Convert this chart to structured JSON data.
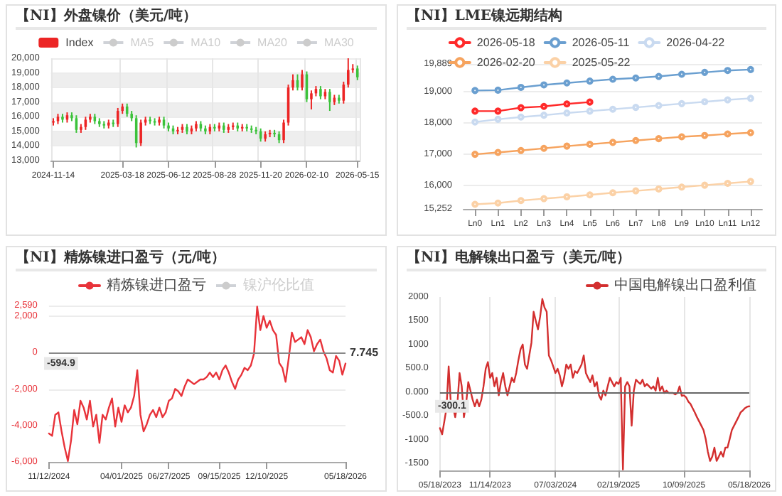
{
  "chart_data": [
    {
      "type": "candlestick",
      "title": "【NI】外盘镍价（美元/吨）",
      "legend": "top",
      "grid": true,
      "categories": [
        "2024-11-14",
        null,
        null,
        null,
        null,
        null,
        null,
        null,
        null,
        null,
        null,
        null,
        null,
        null,
        null,
        "2025-03-18",
        null,
        null,
        null,
        null,
        null,
        null,
        null,
        null,
        null,
        "2025-06-12",
        null,
        null,
        null,
        null,
        null,
        null,
        null,
        null,
        null,
        "2025-08-28",
        null,
        null,
        null,
        null,
        null,
        null,
        null,
        null,
        null,
        "2025-11-20",
        null,
        null,
        null,
        null,
        null,
        null,
        null,
        null,
        null,
        "2026-02-10",
        null,
        null,
        null,
        null,
        null,
        null,
        null,
        null,
        null,
        null,
        "2026-05-15"
      ],
      "ylim": [
        13000,
        20000
      ],
      "yticks": [
        {
          "value": 13000,
          "label": "13,000"
        },
        {
          "value": 14000,
          "label": "14,000"
        },
        {
          "value": 15000,
          "label": "15,000"
        },
        {
          "value": 16000,
          "label": "16,000"
        },
        {
          "value": 17000,
          "label": "17,000"
        },
        {
          "value": 18000,
          "label": "18,000"
        },
        {
          "value": 19000,
          "label": "19,000"
        },
        {
          "value": 20000,
          "label": "20,000"
        }
      ],
      "series": [
        {
          "name": "Index",
          "type": "candlestick",
          "color": "#ec2525",
          "colors": [
            "#ec2525",
            "#ec2525",
            "#3cc23b",
            "#ec2525",
            "#3cc23b",
            "#3cc23b",
            "#ec2525",
            "#ec2525",
            "#ec2525",
            "#3cc23b",
            "#3cc23b",
            "#3cc23b",
            "#ec2525",
            "#3cc23b",
            "#ec2525",
            "#ec2525",
            "#3cc23b",
            "#3cc23b",
            "#3cc23b",
            "#ec2525",
            "#ec2525",
            "#3cc23b",
            "#3cc23b",
            "#ec2525",
            "#3cc23b",
            "#3cc23b",
            "#3cc23b",
            "#ec2525",
            "#ec2525",
            "#3cc23b",
            "#ec2525",
            "#ec2525",
            "#3cc23b",
            "#3cc23b",
            "#ec2525",
            "#3cc23b",
            "#ec2525",
            "#3cc23b",
            "#ec2525",
            "#ec2525",
            "#3cc23b",
            "#ec2525",
            "#3cc23b",
            "#3cc23b",
            "#3cc23b",
            "#3cc23b",
            "#ec2525",
            "#ec2525",
            "#3cc23b",
            "#3cc23b",
            "#ec2525",
            "#ec2525",
            "#ec2525",
            "#3cc23b",
            "#ec2525",
            "#3cc23b",
            "#ec2525",
            "#ec2525",
            "#3cc23b",
            "#ec2525",
            "#3cc23b",
            "#ec2525",
            "#3cc23b",
            "#ec2525",
            "#ec2525",
            "#ec2525",
            "#3cc23b"
          ],
          "ohlc": [
            [
              15600,
              15900,
              15400,
              15700
            ],
            [
              15700,
              16200,
              15500,
              16000
            ],
            [
              16000,
              16200,
              15600,
              15800
            ],
            [
              15800,
              16300,
              15600,
              16100
            ],
            [
              16100,
              16300,
              15700,
              15900
            ],
            [
              15900,
              16100,
              14900,
              15100
            ],
            [
              15100,
              15500,
              14900,
              15300
            ],
            [
              15300,
              16000,
              15100,
              15800
            ],
            [
              15800,
              16200,
              15600,
              16000
            ],
            [
              16000,
              16200,
              15500,
              15700
            ],
            [
              15700,
              15900,
              15300,
              15500
            ],
            [
              15500,
              15700,
              15200,
              15400
            ],
            [
              15400,
              15800,
              15200,
              15600
            ],
            [
              15600,
              15800,
              15300,
              15500
            ],
            [
              15500,
              16600,
              15300,
              16400
            ],
            [
              16400,
              16900,
              16200,
              16700
            ],
            [
              16700,
              16900,
              16000,
              16200
            ],
            [
              16200,
              16400,
              15700,
              15900
            ],
            [
              15900,
              16100,
              13900,
              14200
            ],
            [
              14200,
              15800,
              14000,
              15600
            ],
            [
              15600,
              16000,
              15400,
              15800
            ],
            [
              15800,
              16000,
              15500,
              15700
            ],
            [
              15700,
              15900,
              15400,
              15600
            ],
            [
              15600,
              16000,
              15400,
              15800
            ],
            [
              15800,
              16000,
              15200,
              15400
            ],
            [
              15400,
              15600,
              15000,
              15200
            ],
            [
              15200,
              15400,
              14800,
              15000
            ],
            [
              15000,
              15300,
              14800,
              15100
            ],
            [
              15100,
              15500,
              14900,
              15300
            ],
            [
              15300,
              15500,
              14800,
              15000
            ],
            [
              15000,
              15400,
              14800,
              15200
            ],
            [
              15200,
              15700,
              15000,
              15500
            ],
            [
              15500,
              15700,
              15000,
              15200
            ],
            [
              15200,
              15400,
              14800,
              15000
            ],
            [
              15000,
              15500,
              14800,
              15300
            ],
            [
              15300,
              15500,
              15000,
              15200
            ],
            [
              15200,
              15600,
              15000,
              15400
            ],
            [
              15400,
              15600,
              14900,
              15100
            ],
            [
              15100,
              15500,
              14900,
              15300
            ],
            [
              15300,
              15600,
              15100,
              15400
            ],
            [
              15400,
              15600,
              15000,
              15200
            ],
            [
              15200,
              15500,
              15000,
              15300
            ],
            [
              15300,
              15500,
              15000,
              15200
            ],
            [
              15200,
              15400,
              14900,
              15100
            ],
            [
              15100,
              15300,
              14800,
              15000
            ],
            [
              15000,
              15200,
              14300,
              14500
            ],
            [
              14500,
              15000,
              14300,
              14800
            ],
            [
              14800,
              15100,
              14600,
              14900
            ],
            [
              14900,
              15100,
              14600,
              14800
            ],
            [
              14800,
              15000,
              14200,
              14400
            ],
            [
              14400,
              15800,
              14200,
              15600
            ],
            [
              15600,
              18200,
              15400,
              18000
            ],
            [
              18000,
              18900,
              17800,
              18500
            ],
            [
              18500,
              18900,
              17800,
              18000
            ],
            [
              18000,
              19200,
              17800,
              18900
            ],
            [
              18900,
              19100,
              17000,
              17200
            ],
            [
              17200,
              17800,
              16500,
              17600
            ],
            [
              17600,
              18100,
              17400,
              17900
            ],
            [
              17900,
              18100,
              17200,
              17400
            ],
            [
              17400,
              17900,
              17200,
              17700
            ],
            [
              17700,
              17900,
              16400,
              17000
            ],
            [
              17000,
              17500,
              16800,
              17300
            ],
            [
              17300,
              17500,
              16900,
              17100
            ],
            [
              17100,
              18400,
              16900,
              18200
            ],
            [
              18200,
              20000,
              18000,
              19200
            ],
            [
              19200,
              19600,
              19000,
              19300
            ],
            [
              19300,
              19500,
              18500,
              18700
            ]
          ]
        },
        {
          "name": "MA5",
          "type": "line",
          "color": "#cccccc",
          "values": [
            null,
            null,
            null,
            null,
            null,
            null,
            null,
            null,
            null,
            null,
            null,
            null,
            null,
            null,
            null,
            null,
            null,
            null,
            null,
            null,
            null,
            null,
            null,
            null,
            null,
            null,
            null,
            null,
            null,
            null,
            null,
            null,
            null,
            null,
            null,
            null,
            null,
            null,
            null,
            null,
            null,
            null,
            null,
            null,
            null,
            null,
            null,
            null,
            null,
            null,
            null,
            null,
            null,
            null,
            null,
            null,
            null,
            null,
            null,
            null,
            null,
            null,
            null,
            null,
            null,
            null,
            null
          ]
        },
        {
          "name": "MA10",
          "type": "line",
          "color": "#cccccc",
          "values": [
            null,
            null,
            null,
            null,
            null,
            null,
            null,
            null,
            null,
            null,
            null,
            null,
            null,
            null,
            null,
            null,
            null,
            null,
            null,
            null,
            null,
            null,
            null,
            null,
            null,
            null,
            null,
            null,
            null,
            null,
            null,
            null,
            null,
            null,
            null,
            null,
            null,
            null,
            null,
            null,
            null,
            null,
            null,
            null,
            null,
            null,
            null,
            null,
            null,
            null,
            null,
            null,
            null,
            null,
            null,
            null,
            null,
            null,
            null,
            null,
            null,
            null,
            null,
            null,
            null,
            null,
            null
          ]
        },
        {
          "name": "MA20",
          "type": "line",
          "color": "#cccccc",
          "values": [
            null,
            null,
            null,
            null,
            null,
            null,
            null,
            null,
            null,
            null,
            null,
            null,
            null,
            null,
            null,
            null,
            null,
            null,
            null,
            null,
            null,
            null,
            null,
            null,
            null,
            null,
            null,
            null,
            null,
            null,
            null,
            null,
            null,
            null,
            null,
            null,
            null,
            null,
            null,
            null,
            null,
            null,
            null,
            null,
            null,
            null,
            null,
            null,
            null,
            null,
            null,
            null,
            null,
            null,
            null,
            null,
            null,
            null,
            null,
            null,
            null,
            null,
            null,
            null,
            null,
            null,
            null
          ]
        },
        {
          "name": "MA30",
          "type": "line",
          "color": "#cccccc",
          "values": [
            null,
            null,
            null,
            null,
            null,
            null,
            null,
            null,
            null,
            null,
            null,
            null,
            null,
            null,
            null,
            null,
            null,
            null,
            null,
            null,
            null,
            null,
            null,
            null,
            null,
            null,
            null,
            null,
            null,
            null,
            null,
            null,
            null,
            null,
            null,
            null,
            null,
            null,
            null,
            null,
            null,
            null,
            null,
            null,
            null,
            null,
            null,
            null,
            null,
            null,
            null,
            null,
            null,
            null,
            null,
            null,
            null,
            null,
            null,
            null,
            null,
            null,
            null,
            null,
            null,
            null,
            null
          ]
        }
      ]
    },
    {
      "type": "line",
      "title": "【NI】LME镍远期结构",
      "legend": "top",
      "grid": "y",
      "marker": "circle",
      "categories": [
        "Ln0",
        "Ln1",
        "Ln2",
        "Ln3",
        "Ln4",
        "Ln5",
        "Ln6",
        "Ln7",
        "Ln8",
        "Ln9",
        "Ln10",
        "Ln11",
        "Ln12"
      ],
      "ylim": [
        15252,
        19889
      ],
      "yticks": [
        {
          "value": 15252,
          "label": "15,252"
        },
        {
          "value": 16000,
          "label": "16,000"
        },
        {
          "value": 17000,
          "label": "17,000"
        },
        {
          "value": 18000,
          "label": "18,000"
        },
        {
          "value": 19000,
          "label": "19,000"
        },
        {
          "value": 19889,
          "label": "19,889"
        }
      ],
      "series": [
        {
          "name": "2026-05-18",
          "color": "#ff2a2a",
          "values": [
            18380,
            18380,
            18490,
            18530,
            18610,
            18670,
            null,
            null,
            null,
            null,
            null,
            null,
            null
          ]
        },
        {
          "name": "2026-05-11",
          "color": "#6a9fd0",
          "values": [
            19040,
            19050,
            19140,
            19220,
            19280,
            19340,
            19400,
            19440,
            19490,
            19560,
            19620,
            19680,
            19710
          ]
        },
        {
          "name": "2026-04-22",
          "color": "#c9daf0",
          "values": [
            18030,
            18120,
            18190,
            18250,
            18320,
            18380,
            18440,
            18500,
            18560,
            18620,
            18680,
            18740,
            18790
          ]
        },
        {
          "name": "2026-02-20",
          "color": "#f6a35e",
          "values": [
            17000,
            17060,
            17120,
            17190,
            17260,
            17320,
            17380,
            17440,
            17500,
            17560,
            17600,
            17650,
            17690
          ]
        },
        {
          "name": "2025-05-22",
          "color": "#fbd1a6",
          "values": [
            15400,
            15440,
            15520,
            15580,
            15640,
            15700,
            15770,
            15830,
            15890,
            15950,
            16010,
            16070,
            16130
          ]
        }
      ]
    },
    {
      "type": "line",
      "title": "【NI】精炼镍进口盈亏（元/吨）",
      "legend": "top",
      "grid": "y",
      "marker": "none",
      "categories": [
        "11/12/2024",
        null,
        null,
        null,
        null,
        null,
        null,
        null,
        null,
        null,
        null,
        null,
        null,
        null,
        null,
        null,
        null,
        null,
        null,
        null,
        null,
        null,
        null,
        "04/01/2025",
        null,
        null,
        null,
        null,
        null,
        null,
        null,
        null,
        null,
        null,
        null,
        null,
        null,
        null,
        "06/27/2025",
        null,
        null,
        null,
        null,
        null,
        null,
        null,
        null,
        null,
        null,
        null,
        null,
        null,
        null,
        null,
        "09/15/2025",
        null,
        null,
        null,
        null,
        null,
        null,
        null,
        null,
        null,
        null,
        null,
        null,
        null,
        null,
        "12/10/2025",
        null,
        null,
        null,
        null,
        null,
        null,
        null,
        null,
        null,
        null,
        null,
        null,
        null,
        null,
        null,
        null,
        null,
        null,
        null,
        null,
        null,
        null,
        null,
        null,
        "05/18/2026"
      ],
      "ylim": [
        -6000,
        2590
      ],
      "yticks": [
        {
          "value": -6000,
          "label": "-6,000"
        },
        {
          "value": -4000,
          "label": "-4,000"
        },
        {
          "value": -2000,
          "label": "-2,000"
        },
        0,
        {
          "value": 2000,
          "label": "2,000"
        },
        {
          "value": 2590,
          "label": "2,590"
        }
      ],
      "ref_lines": [
        {
          "axis": "y",
          "value": 0,
          "color": "#888888"
        }
      ],
      "annotations": [
        "-594.9",
        "7.745"
      ],
      "series": [
        {
          "name": "精炼镍进口盈亏",
          "color": "#e8333a",
          "values": [
            -4440,
            -4570,
            -3410,
            -3280,
            -4320,
            -5220,
            -5950,
            -4830,
            -3150,
            -3930,
            -2640,
            -3020,
            -3670,
            -2640,
            -4060,
            -3410,
            -4960,
            -3410,
            -3670,
            -3020,
            -2510,
            -4060,
            -3020,
            -3800,
            -2890,
            -3280,
            -3020,
            -2380,
            -960,
            -3410,
            -4320,
            -3930,
            -3410,
            -3150,
            -3540,
            -3020,
            -3540,
            -3280,
            -2640,
            -2510,
            -1990,
            -2120,
            -2380,
            -1860,
            -1470,
            -1600,
            -1730,
            -1600,
            -1470,
            -1470,
            -1340,
            -1090,
            -1340,
            -1090,
            -1470,
            -960,
            -700,
            -1090,
            -1600,
            -1990,
            -1470,
            -1210,
            -830,
            -960,
            -700,
            -50,
            2530,
            1240,
            2020,
            1370,
            1760,
            1240,
            980,
            -570,
            -830,
            -1600,
            -310,
            1110,
            590,
            720,
            850,
            470,
            1240,
            850,
            80,
            470,
            720,
            80,
            -310,
            -960,
            -1090,
            -180,
            -440,
            -1210,
            -594.9
          ]
        },
        {
          "name": "镍沪伦比值",
          "color": "#cccccc",
          "values": [
            null,
            null,
            null,
            null,
            null,
            null,
            null,
            null,
            null,
            null,
            null,
            null,
            null,
            null,
            null,
            null,
            null,
            null,
            null,
            null,
            null,
            null,
            null,
            null,
            null,
            null,
            null,
            null,
            null,
            null,
            null,
            null,
            null,
            null,
            null,
            null,
            null,
            null,
            null,
            null,
            null,
            null,
            null,
            null,
            null,
            null,
            null,
            null,
            null,
            null,
            null,
            null,
            null,
            null,
            null,
            null,
            null,
            null,
            null,
            null,
            null,
            null,
            null,
            null,
            null,
            null,
            null,
            null,
            null,
            null,
            null,
            null,
            null,
            null,
            null,
            null,
            null,
            null,
            null,
            null,
            null,
            null,
            null,
            null,
            null,
            null,
            null,
            null,
            null,
            null,
            null,
            null,
            null,
            null,
            null
          ]
        }
      ]
    },
    {
      "type": "line",
      "title": "【NI】电解镍出口盈亏（美元/吨）",
      "legend": "top right",
      "grid": "x",
      "marker": "none",
      "categories": [
        "05/18/2023",
        null,
        null,
        null,
        null,
        null,
        null,
        null,
        null,
        null,
        null,
        null,
        null,
        null,
        null,
        null,
        null,
        null,
        null,
        null,
        null,
        null,
        null,
        "11/14/2023",
        null,
        null,
        null,
        null,
        null,
        null,
        null,
        null,
        null,
        null,
        null,
        null,
        null,
        null,
        null,
        null,
        null,
        null,
        null,
        null,
        null,
        null,
        null,
        null,
        null,
        null,
        null,
        null,
        null,
        "07/03/2024",
        null,
        null,
        null,
        null,
        null,
        null,
        null,
        null,
        null,
        null,
        null,
        null,
        null,
        null,
        null,
        null,
        null,
        null,
        null,
        null,
        null,
        null,
        null,
        null,
        null,
        null,
        null,
        null,
        "02/19/2025",
        null,
        null,
        null,
        null,
        null,
        null,
        null,
        null,
        null,
        null,
        null,
        null,
        null,
        null,
        null,
        null,
        null,
        null,
        null,
        null,
        null,
        null,
        null,
        null,
        null,
        null,
        null,
        null,
        null,
        "10/09/2025",
        null,
        null,
        null,
        null,
        null,
        null,
        null,
        null,
        null,
        null,
        null,
        null,
        null,
        null,
        null,
        null,
        null,
        null,
        null,
        null,
        null,
        null,
        null,
        null,
        null,
        null,
        null,
        null,
        null,
        "05/18/2026"
      ],
      "ylim": [
        -1650,
        2000
      ],
      "yticks": [
        -1500,
        -1000,
        {
          "value": -500,
          "label": "-500.0"
        },
        {
          "value": 0,
          "label": "0.000"
        },
        {
          "value": 500,
          "label": "500.0"
        },
        1000,
        1500,
        2000
      ],
      "ref_lines": [
        {
          "axis": "y",
          "value": 0,
          "color": "#666666"
        }
      ],
      "annotations": [
        "-300.1"
      ],
      "series": [
        {
          "name": "中国电解镍出口盈利值",
          "color": "#d32f2f",
          "values": [
            -760,
            -890,
            -620,
            -340,
            540,
            -250,
            -300,
            -530,
            -250,
            400,
            120,
            -530,
            -250,
            210,
            30,
            -160,
            -300,
            -160,
            -300,
            -160,
            120,
            490,
            630,
            300,
            400,
            120,
            300,
            -70,
            210,
            400,
            120,
            -70,
            120,
            300,
            210,
            400,
            670,
            900,
            1000,
            580,
            490,
            770,
            1040,
            1690,
            1500,
            1320,
            1590,
            1960,
            1780,
            1690,
            770,
            670,
            540,
            400,
            490,
            350,
            120,
            300,
            580,
            490,
            580,
            300,
            440,
            400,
            490,
            580,
            770,
            400,
            300,
            210,
            350,
            120,
            210,
            -70,
            -160,
            30,
            -70,
            120,
            300,
            210,
            120,
            210,
            170,
            300,
            -1630,
            120,
            210,
            120,
            -710,
            30,
            260,
            210,
            170,
            260,
            120,
            170,
            120,
            70,
            120,
            30,
            300,
            30,
            120,
            -20,
            30,
            -20,
            -20,
            -20,
            -50,
            -20,
            120,
            -80,
            -70,
            -110,
            -200,
            -250,
            -340,
            -430,
            -530,
            -620,
            -710,
            -800,
            -990,
            -1260,
            -1450,
            -1360,
            -1170,
            -1450,
            -1360,
            -1260,
            -1360,
            -1170,
            -1170,
            -990,
            -800,
            -710,
            -620,
            -530,
            -430,
            -390,
            -340,
            -310,
            -300.1
          ]
        }
      ]
    }
  ]
}
